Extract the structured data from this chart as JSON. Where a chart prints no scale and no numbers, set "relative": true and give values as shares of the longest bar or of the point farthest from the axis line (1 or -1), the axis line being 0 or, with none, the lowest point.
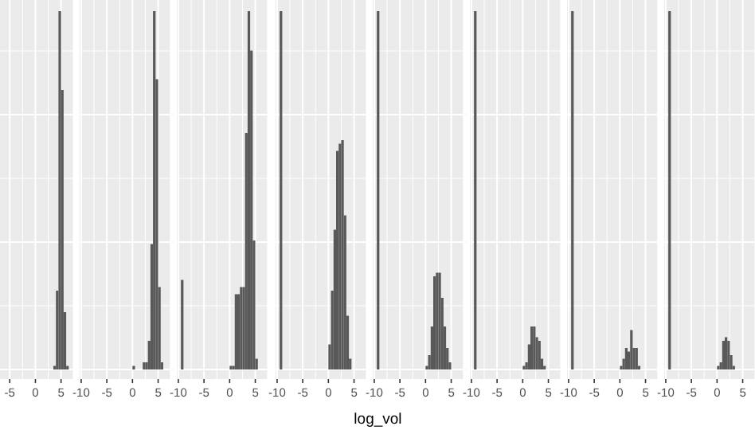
{
  "chart_data": [
    {
      "type": "bar",
      "relative": true,
      "color": "#595959",
      "grid": true,
      "tick_labels": "x",
      "xlim": [
        -6.9,
        7.3
      ],
      "xticks": [
        -5,
        0,
        5
      ],
      "x": [
        3.75,
        4.25,
        4.75,
        5.25,
        5.75,
        6.25
      ],
      "values": [
        0.01,
        0.22,
        1,
        0.78,
        0.16,
        0.01
      ]
    },
    {
      "type": "bar",
      "relative": true,
      "color": "#595959",
      "grid": true,
      "tick_labels": "x",
      "xlim": [
        -10.3,
        7.3
      ],
      "xticks": [
        -10,
        -5,
        0,
        5
      ],
      "x": [
        0.25,
        2.25,
        2.75,
        3.25,
        3.75,
        4.25,
        4.75,
        5.25,
        5.75
      ],
      "values": [
        0.01,
        0.02,
        0.02,
        0.08,
        0.35,
        1,
        0.81,
        0.23,
        0.02
      ]
    },
    {
      "type": "bar",
      "relative": true,
      "color": "#595959",
      "grid": true,
      "tick_labels": "x",
      "xlim": [
        -10.3,
        7.3
      ],
      "xticks": [
        -10,
        -5,
        0,
        5
      ],
      "x": [
        -9.25,
        0.25,
        0.75,
        1.25,
        1.75,
        2.25,
        2.75,
        3.25,
        3.75,
        4.25,
        4.75,
        5.25
      ],
      "values": [
        0.25,
        0.01,
        0.01,
        0.21,
        0.21,
        0.23,
        0.23,
        0.66,
        1,
        0.89,
        0.36,
        0.03
      ]
    },
    {
      "type": "bar",
      "relative": true,
      "color": "#595959",
      "grid": true,
      "tick_labels": "x",
      "xlim": [
        -10.3,
        7.3
      ],
      "xticks": [
        -10,
        -5,
        0,
        5
      ],
      "x": [
        -9.25,
        0.25,
        0.75,
        1.25,
        1.75,
        2.25,
        2.75,
        3.25,
        3.75,
        4.25
      ],
      "values": [
        1,
        0.07,
        0.22,
        0.39,
        0.61,
        0.63,
        0.64,
        0.43,
        0.15,
        0.03
      ]
    },
    {
      "type": "bar",
      "relative": true,
      "color": "#595959",
      "grid": true,
      "tick_labels": "x",
      "xlim": [
        -10.3,
        7.3
      ],
      "xticks": [
        -10,
        -5,
        0,
        5
      ],
      "xlabel": "log_vol",
      "x": [
        -9.25,
        0.25,
        0.75,
        1.25,
        1.75,
        2.25,
        2.75,
        3.25,
        3.75,
        4.25,
        4.75
      ],
      "values": [
        1,
        0.01,
        0.04,
        0.12,
        0.26,
        0.27,
        0.27,
        0.2,
        0.12,
        0.06,
        0.02
      ]
    },
    {
      "type": "bar",
      "relative": true,
      "color": "#595959",
      "grid": true,
      "tick_labels": "x",
      "xlim": [
        -10.3,
        7.3
      ],
      "xticks": [
        -10,
        -5,
        0,
        5
      ],
      "x": [
        -9.25,
        0.25,
        0.75,
        1.25,
        1.75,
        2.25,
        2.75,
        3.25,
        3.75,
        4.25
      ],
      "values": [
        1,
        0.01,
        0.02,
        0.07,
        0.12,
        0.12,
        0.09,
        0.08,
        0.03,
        0.01
      ]
    },
    {
      "type": "bar",
      "relative": true,
      "color": "#595959",
      "grid": true,
      "tick_labels": "x",
      "xlim": [
        -10.3,
        7.3
      ],
      "xticks": [
        -10,
        -5,
        0,
        5
      ],
      "x": [
        -9.25,
        0.25,
        0.75,
        1.25,
        1.75,
        2.25,
        2.75,
        3.25,
        3.75
      ],
      "values": [
        1,
        0.01,
        0.03,
        0.06,
        0.05,
        0.11,
        0.06,
        0.06,
        0.01
      ]
    },
    {
      "type": "bar",
      "relative": true,
      "color": "#595959",
      "grid": true,
      "tick_labels": "x",
      "xlim": [
        -10.3,
        7.3
      ],
      "xticks": [
        -10,
        -5,
        0,
        5
      ],
      "x": [
        -9.25,
        0.25,
        0.75,
        1.25,
        1.75,
        2.25,
        2.75,
        3.25
      ],
      "values": [
        1,
        0.01,
        0.02,
        0.08,
        0.09,
        0.08,
        0.04,
        0.01
      ]
    }
  ]
}
